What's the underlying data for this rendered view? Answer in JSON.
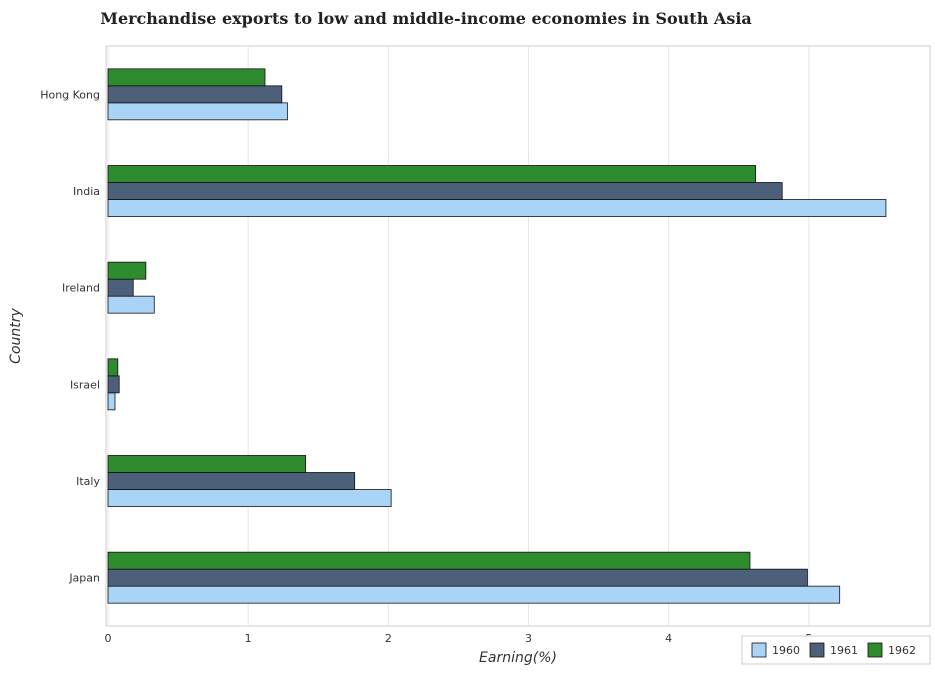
{
  "chart_data": {
    "type": "bar",
    "orientation": "horizontal",
    "title": "Merchandise exports to low and middle-income economies in South Asia",
    "xlabel": "Earning(%)",
    "ylabel": "Country",
    "xlim": [
      0,
      5.85
    ],
    "xticks": [
      0,
      1,
      2,
      3,
      4,
      5
    ],
    "xtick_labels": [
      "0",
      "1",
      "2",
      "3",
      "4",
      "5"
    ],
    "grid": true,
    "legend_position": "bottom-right",
    "categories": [
      "Hong Kong",
      "India",
      "Ireland",
      "Israel",
      "Italy",
      "Japan"
    ],
    "series": [
      {
        "name": "1960",
        "color": "#aad4f5",
        "values": [
          1.28,
          5.55,
          0.33,
          0.05,
          2.02,
          5.22
        ]
      },
      {
        "name": "1961",
        "color": "#4d6079",
        "values": [
          1.24,
          4.81,
          0.18,
          0.08,
          1.76,
          4.99
        ]
      },
      {
        "name": "1962",
        "color": "#2e8b2e",
        "values": [
          1.12,
          4.62,
          0.27,
          0.07,
          1.41,
          4.58
        ]
      }
    ]
  }
}
